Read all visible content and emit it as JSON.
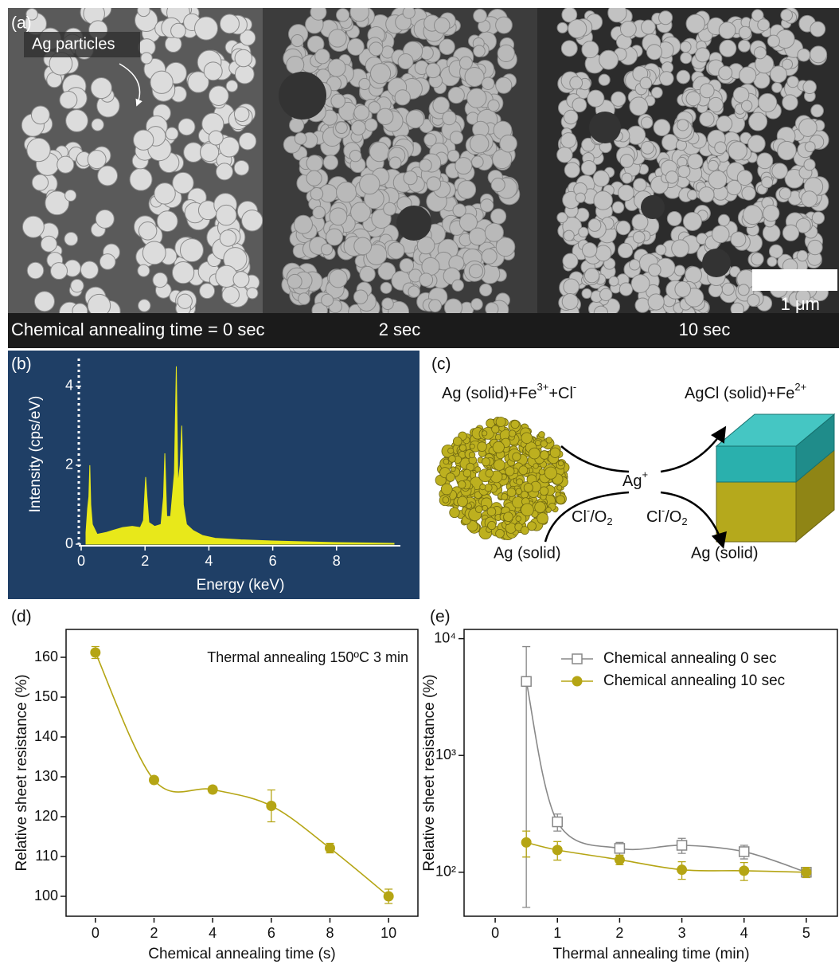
{
  "panels": {
    "a": "(a)",
    "b": "(b)",
    "c": "(c)",
    "d": "(d)",
    "e": "(e)"
  },
  "sem": {
    "arrow_label": "Ag particles",
    "scale_bar": "1 μm",
    "time_0": "Chemical annealing time = 0 sec",
    "time_2": "2 sec",
    "time_10": "10 sec"
  },
  "diagram": {
    "reactants": [
      "Ag (solid)+Fe",
      "3+",
      "+Cl",
      "-"
    ],
    "products": [
      "AgCl (solid)+Fe",
      "2+"
    ],
    "ion": [
      "Ag",
      "+"
    ],
    "oxidant_left": [
      "Cl",
      "-",
      "/O",
      "2"
    ],
    "oxidant_right": [
      "Cl",
      "-",
      "/O",
      "2"
    ],
    "solid_left": "Ag (solid)",
    "solid_right": "Ag (solid)"
  },
  "chart_data": [
    {
      "type": "area",
      "xlabel": "Energy (keV)",
      "ylabel": "Intensity (cps/eV)",
      "color": "#e8e81a",
      "x": [
        0.15,
        0.2,
        0.24,
        0.27,
        0.3,
        0.35,
        0.5,
        0.8,
        1.0,
        1.3,
        1.6,
        1.85,
        1.95,
        2.02,
        2.06,
        2.12,
        2.3,
        2.5,
        2.58,
        2.62,
        2.68,
        2.8,
        2.92,
        2.98,
        3.03,
        3.1,
        3.15,
        3.2,
        3.3,
        3.5,
        3.8,
        4.2,
        5.0,
        6.0,
        7.0,
        8.0,
        9.0,
        9.8
      ],
      "values": [
        0.3,
        0.9,
        1.2,
        2.0,
        1.0,
        0.5,
        0.25,
        0.3,
        0.35,
        0.42,
        0.45,
        0.42,
        0.6,
        1.7,
        1.2,
        0.55,
        0.45,
        0.5,
        1.2,
        2.3,
        0.7,
        0.7,
        1.8,
        4.5,
        1.5,
        2.0,
        3.0,
        1.0,
        0.5,
        0.35,
        0.22,
        0.15,
        0.11,
        0.08,
        0.06,
        0.04,
        0.03,
        0.02
      ],
      "xlim": [
        0,
        10
      ],
      "ylim": [
        0,
        4.7
      ],
      "xticks": [
        0,
        2,
        4,
        6,
        8
      ],
      "yticks": [
        0,
        2,
        4
      ]
    },
    {
      "type": "scatter",
      "xlabel": "Chemical annealing time (s)",
      "ylabel": "Relative sheet resistance (%)",
      "annotation": "Thermal annealing 150ºC 3 min",
      "color": "#b5a514",
      "marker": "circle",
      "x": [
        0,
        2,
        4,
        6,
        8,
        10
      ],
      "values": [
        161.2,
        129.2,
        126.8,
        122.7,
        112.1,
        100
      ],
      "errors": [
        1.5,
        0.5,
        0.8,
        4,
        1.2,
        1.8
      ],
      "xlim": [
        -1,
        11
      ],
      "ylim": [
        95,
        167
      ],
      "xticks": [
        0,
        2,
        4,
        6,
        8,
        10
      ],
      "yticks": [
        100,
        110,
        120,
        130,
        140,
        150,
        160
      ]
    },
    {
      "type": "scatter",
      "xlabel": "Thermal annealing time (min)",
      "ylabel": "Relative sheet resistance (%)",
      "log_y": true,
      "x": [
        0.5,
        1,
        2,
        3,
        4,
        5
      ],
      "series": [
        {
          "name": "Chemical annealing 0 sec",
          "color": "#888888",
          "marker": "open-square",
          "values": [
            4300,
            270,
            160,
            170,
            150,
            100
          ],
          "errors": [
            4250,
            45,
            20,
            25,
            20,
            8
          ]
        },
        {
          "name": "Chemical annealing 10 sec",
          "color": "#b5a514",
          "marker": "circle",
          "values": [
            180,
            155,
            128,
            105,
            103,
            100
          ],
          "errors": [
            45,
            28,
            12,
            18,
            18,
            10
          ]
        }
      ],
      "xlim": [
        -0.5,
        5.5
      ],
      "ylim": [
        42,
        12000
      ],
      "xticks": [
        0,
        1,
        2,
        3,
        4,
        5
      ],
      "yticks": [
        {
          "value": 100,
          "label": "10²"
        },
        {
          "value": 1000,
          "label": "10³"
        },
        {
          "value": 10000,
          "label": "10⁴"
        }
      ]
    }
  ]
}
